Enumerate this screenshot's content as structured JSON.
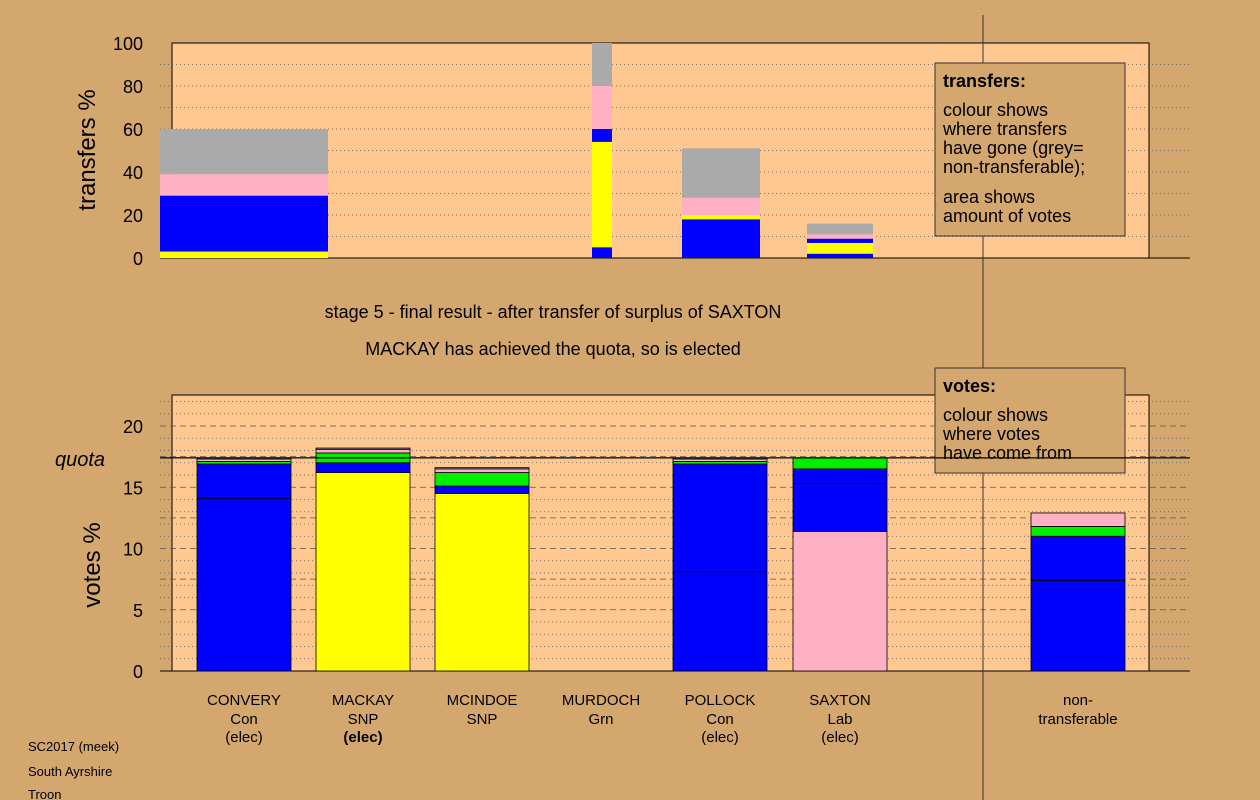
{
  "colors": {
    "background": "#d4a76f",
    "panel": "#ffc890",
    "Con": "#0000ff",
    "SNP": "#ffff00",
    "Grn": "#00ee00",
    "Lab": "#ffb0c4",
    "nontransferable": "#aaaaaa"
  },
  "captions": {
    "stage": "stage 5 - final result - after transfer of surplus of SAXTON",
    "elected": "MACKAY has achieved the quota, so is elected"
  },
  "legend_transfers": {
    "title": "transfers:",
    "lines1": [
      "colour shows",
      "where transfers",
      "have gone (grey=",
      "non-transferable);"
    ],
    "lines2": [
      "area shows",
      "amount of votes"
    ]
  },
  "legend_votes": {
    "title": "votes:",
    "lines": [
      "colour shows",
      "where votes",
      "have come from"
    ]
  },
  "footer": [
    "SC2017 (meek)",
    "South Ayrshire",
    "Troon"
  ],
  "chart_data": [
    {
      "type": "bar",
      "stacked": true,
      "ylabel": "transfers %",
      "ylim": [
        0,
        100
      ],
      "yticks": [
        0,
        20,
        40,
        60,
        80,
        100
      ],
      "grid": "dotted horizontal",
      "categories": [
        "CONVERY",
        "MACKAY",
        "MCINDOE",
        "MURDOCH",
        "POLLOCK",
        "SAXTON",
        "non-transferable"
      ],
      "bar_width_note": "bar width proportional to amount of votes transferred",
      "bars": [
        {
          "category": "CONVERY",
          "width_share": 0.95,
          "segments": [
            {
              "party": "SNP",
              "value": 3
            },
            {
              "party": "Con",
              "value": 26
            },
            {
              "party": "Lab",
              "value": 10
            },
            {
              "party": "nontransferable",
              "value": 21
            }
          ]
        },
        {
          "category": "MURDOCH",
          "width_share": 0.11,
          "segments": [
            {
              "party": "Con",
              "value": 5
            },
            {
              "party": "SNP",
              "value": 49
            },
            {
              "party": "Con",
              "value": 6
            },
            {
              "party": "Lab",
              "value": 20
            },
            {
              "party": "nontransferable",
              "value": 20
            }
          ]
        },
        {
          "category": "POLLOCK",
          "width_share": 0.44,
          "segments": [
            {
              "party": "Con",
              "value": 18
            },
            {
              "party": "SNP",
              "value": 2
            },
            {
              "party": "Lab",
              "value": 8
            },
            {
              "party": "nontransferable",
              "value": 23
            }
          ]
        },
        {
          "category": "SAXTON",
          "width_share": 0.38,
          "segments": [
            {
              "party": "Con",
              "value": 2
            },
            {
              "party": "SNP",
              "value": 5
            },
            {
              "party": "Con",
              "value": 2
            },
            {
              "party": "Lab",
              "value": 2
            },
            {
              "party": "nontransferable",
              "value": 5
            }
          ]
        }
      ]
    },
    {
      "type": "bar",
      "stacked": true,
      "ylabel": "votes %",
      "ylim": [
        0,
        22.5
      ],
      "yticks": [
        0,
        5,
        10,
        15,
        20
      ],
      "quota": 17.4,
      "quota_label": "quota",
      "grid": "dashed horizontal",
      "categories": [
        "CONVERY",
        "MACKAY",
        "MCINDOE",
        "MURDOCH",
        "POLLOCK",
        "SAXTON",
        "non-transferable"
      ],
      "bars": [
        {
          "name": "CONVERY",
          "party": "Con",
          "status": "(elec)",
          "bold": false,
          "segments": [
            {
              "party": "Con",
              "value": 16.9,
              "first_pref": 14.1
            },
            {
              "party": "Grn",
              "value": 0.2
            },
            {
              "party": "Lab",
              "value": 0.2
            },
            {
              "party": "nontransferable",
              "value": 0.1
            }
          ]
        },
        {
          "name": "MACKAY",
          "party": "SNP",
          "status": "(elec)",
          "bold": true,
          "segments": [
            {
              "party": "SNP",
              "value": 16.2
            },
            {
              "party": "Con",
              "value": 0.8
            },
            {
              "party": "Grn",
              "value": 0.8
            },
            {
              "party": "Lab",
              "value": 0.3
            },
            {
              "party": "nontransferable",
              "value": 0.1
            }
          ]
        },
        {
          "name": "MCINDOE",
          "party": "SNP",
          "status": "",
          "bold": false,
          "segments": [
            {
              "party": "SNP",
              "value": 14.5
            },
            {
              "party": "Con",
              "value": 0.6
            },
            {
              "party": "Grn",
              "value": 1.1
            },
            {
              "party": "Lab",
              "value": 0.3
            },
            {
              "party": "nontransferable",
              "value": 0.1
            }
          ]
        },
        {
          "name": "MURDOCH",
          "party": "Grn",
          "status": "",
          "bold": false,
          "segments": []
        },
        {
          "name": "POLLOCK",
          "party": "Con",
          "status": "(elec)",
          "bold": false,
          "segments": [
            {
              "party": "Con",
              "value": 16.9,
              "first_pref": 8.1
            },
            {
              "party": "Grn",
              "value": 0.2
            },
            {
              "party": "Lab",
              "value": 0.2
            },
            {
              "party": "nontransferable",
              "value": 0.1
            }
          ]
        },
        {
          "name": "SAXTON",
          "party": "Lab",
          "status": "(elec)",
          "bold": false,
          "segments": [
            {
              "party": "Lab",
              "value": 11.4
            },
            {
              "party": "Con",
              "value": 5.1,
              "line_at": 15.3
            },
            {
              "party": "Grn",
              "value": 0.9
            }
          ]
        },
        {
          "name": "non-",
          "party": "transferable",
          "status": "",
          "bold": false,
          "segments": [
            {
              "party": "Con",
              "value": 11.0,
              "first_pref": 7.4
            },
            {
              "party": "Grn",
              "value": 0.8
            },
            {
              "party": "Lab",
              "value": 1.1
            }
          ]
        }
      ]
    }
  ]
}
